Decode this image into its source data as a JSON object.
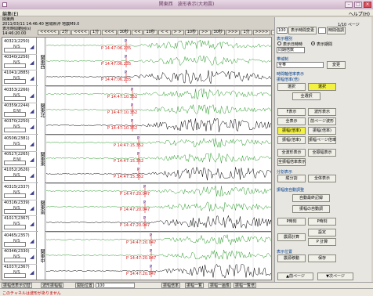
{
  "window": {
    "title": "関東西　波形表示(大地震)",
    "minimize_icon": "minimize-icon",
    "close_icon": "close-icon"
  },
  "menu": {
    "left": "編集(E)",
    "right": "ヘルプ(H)"
  },
  "info": {
    "line1": "関東西",
    "line2": "2011/03/11 14:46:40 宮城県沖 地震M9.0",
    "line3": "表示時間範囲(s)",
    "line4": "14:46:20.00"
  },
  "toolbar": [
    "<<<<<",
    "2分",
    "<<<<",
    "1分",
    "<<<",
    "30秒",
    "<<",
    "10秒",
    "< <",
    "> >",
    "10秒",
    ">>",
    "30秒",
    ">>>",
    "1分",
    ">>>>",
    "2分",
    ">>>>>"
  ],
  "groups": [
    {
      "name": "関東西",
      "traces": [
        {
          "code": "40321(2250)",
          "comp": "N/S"
        },
        {
          "code": "40340(2256)",
          "comp": "N/S"
        },
        {
          "code": "41041(2885)",
          "comp": "N/S"
        }
      ]
    },
    {
      "name": "関東北",
      "traces": [
        {
          "code": "40353(2266)",
          "comp": "N/S"
        },
        {
          "code": "40359(2244)",
          "comp": "E/W"
        },
        {
          "code": "40370(2250)",
          "comp": "N/S"
        }
      ]
    },
    {
      "name": "関東東",
      "traces": [
        {
          "code": "40506(2381)",
          "comp": "N/S"
        },
        {
          "code": "40527(2265)",
          "comp": "E/W"
        },
        {
          "code": "41052(2626)",
          "comp": "N/S"
        }
      ]
    },
    {
      "name": "関東南",
      "traces": [
        {
          "code": "40315(2337)",
          "comp": "N/S"
        },
        {
          "code": "40316(2339)",
          "comp": "N/S"
        },
        {
          "code": "41017(2367)",
          "comp": "N/S"
        }
      ]
    },
    {
      "name": "関東中",
      "traces": [
        {
          "code": "40465(2357)",
          "comp": "N/S"
        },
        {
          "code": "40346(2330)",
          "comp": "N/S"
        },
        {
          "code": "41037(2367)",
          "comp": "N/S"
        }
      ]
    }
  ],
  "p_labels": [
    "P 14:47:06.235",
    "P 14:47:06.235",
    "P 14:47:06.235",
    "P 14:47:10.352",
    "P 14:47:10.352",
    "P 14:47:10.352",
    "P 14:47:15.352",
    "P 14:47:15.352",
    "P 14:47:15.352",
    "P 14:47:20.047",
    "P 14:47:20.047",
    "P 14:47:20.047",
    "P 14:47:20.047",
    "P 14:47:20.047",
    "P 14:47:20.047"
  ],
  "panel": {
    "page_label": "1/10 ページ",
    "page_input": "100",
    "page_btn": "表示時間変更",
    "page_btn2": "時間強調",
    "disp_label": "表示種別",
    "radio1": "表示日時時",
    "radio2": "表示期間",
    "disp_input": "同期倍数",
    "filter_label": "帯域制",
    "filter_input": "全帯",
    "filter_btn": "変更",
    "time_label": "時間軸倍率表示",
    "amp_label": "振幅倍率(倍)",
    "btn_reset": "選択",
    "btn_add": "選択",
    "btn_select": "全選択",
    "row1": [
      "F表示",
      "波形表示"
    ],
    "row2": [
      "全表示",
      "前ページ波形"
    ],
    "row3": [
      "振幅(倍率)",
      "振幅(倍率)"
    ],
    "row4": [
      "振幅(倍率)",
      "振幅ページ倍率"
    ],
    "row5": [
      "全波形表示",
      "全振幅表示"
    ],
    "row6": [
      "全振幅倍率表示",
      ""
    ],
    "section2_label": "分割表示",
    "row7": [
      "縦分割",
      "全体表示"
    ],
    "section3_label": "振幅度自動調整",
    "row8": "自動最終記録",
    "row9": "振幅の自動調",
    "row10": [
      "P時刻",
      "P時刻"
    ],
    "row11": [
      "震源計算",
      "設定"
    ],
    "row12": "P 計算",
    "section4_label": "表示位置",
    "row13": [
      "震源移動",
      "保存"
    ],
    "prev_btn": "▲前ページ",
    "next_btn": "▼次ページ"
  },
  "bottombar": {
    "item1": "振幅倍表示切替",
    "item2": "波形振幅幅",
    "item3": "開始位置",
    "item4": "100",
    "item5": "振幅倍率",
    "item6": "振幅一覧",
    "item7": "振幅一画像",
    "item8": "振幅一覧倍"
  },
  "status": "このチャネルは波形がありません"
}
